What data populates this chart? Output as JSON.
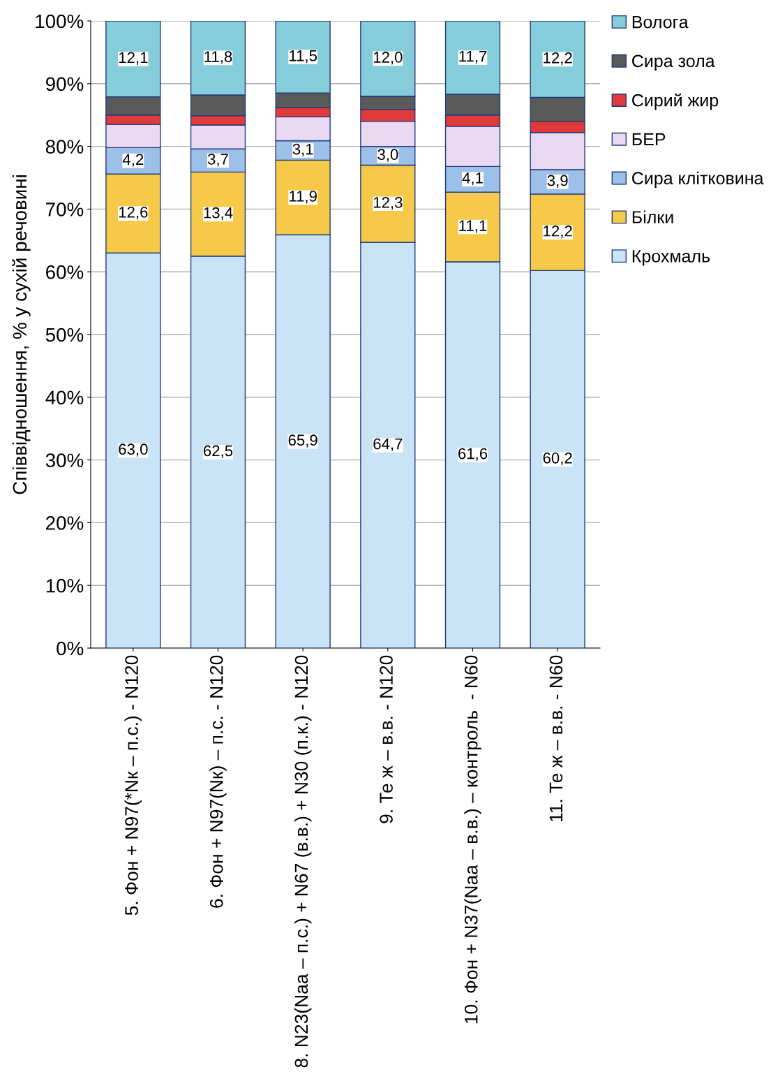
{
  "chart_data": {
    "type": "bar",
    "stacked": true,
    "ylabel": "Співвідношення, % у сухій речовині",
    "categories": [
      "5. Фон + N97(*Nк – п.с.) - N120",
      "6. Фон + N97(Nк) – п.с. - N120",
      "8. N23(Naa – п.с.) + N67 (в.в.) + N30 (п.к.) - N120",
      "9. Те ж – в.в. - N120",
      "10. Фон + N37(Naa – в.в.) – контроль  - N60",
      "11. Те ж – в.в. - N60"
    ],
    "series": [
      {
        "name": "Крохмаль",
        "color": "#c9e4f6",
        "values": [
          63.0,
          62.5,
          65.9,
          64.7,
          61.6,
          60.2
        ],
        "value_labels": [
          "63,0",
          "62,5",
          "65,9",
          "64,7",
          "61,6",
          "60,2"
        ]
      },
      {
        "name": "Білки",
        "color": "#f7c948",
        "values": [
          12.6,
          13.4,
          11.9,
          12.3,
          11.1,
          12.2
        ],
        "value_labels": [
          "12,6",
          "13,4",
          "11,9",
          "12,3",
          "11,1",
          "12,2"
        ]
      },
      {
        "name": "Сира клітковина",
        "color": "#9cc0e8",
        "values": [
          4.2,
          3.7,
          3.1,
          3.0,
          4.1,
          3.9
        ],
        "value_labels": [
          "4,2",
          "3,7",
          "3,1",
          "3,0",
          "4,1",
          "3,9"
        ]
      },
      {
        "name": "БЕР",
        "color": "#ead9f3",
        "values": [
          3.7,
          3.8,
          3.8,
          4.0,
          6.4,
          5.9
        ]
      },
      {
        "name": "Сирий жир",
        "color": "#e03a3a",
        "values": [
          1.5,
          1.5,
          1.5,
          1.9,
          1.8,
          1.8
        ]
      },
      {
        "name": "Сира зола",
        "color": "#5a5a5a",
        "values": [
          2.9,
          3.3,
          2.3,
          2.1,
          3.3,
          3.8
        ]
      },
      {
        "name": "Вологa",
        "color": "#86cddc",
        "values": [
          12.1,
          11.8,
          11.5,
          12.0,
          11.7,
          12.2
        ],
        "value_labels": [
          "12,1",
          "11,8",
          "11,5",
          "12,0",
          "11,7",
          "12,2"
        ]
      }
    ],
    "ylim": [
      0,
      100
    ],
    "yticks": [
      {
        "value": 0,
        "label": "0%"
      },
      {
        "value": 10,
        "label": "10%"
      },
      {
        "value": 20,
        "label": "20%"
      },
      {
        "value": 30,
        "label": "30%"
      },
      {
        "value": 40,
        "label": "40%"
      },
      {
        "value": 50,
        "label": "50%"
      },
      {
        "value": 60,
        "label": "60%"
      },
      {
        "value": 70,
        "label": "70%"
      },
      {
        "value": 80,
        "label": "80%"
      },
      {
        "value": 90,
        "label": "90%"
      },
      {
        "value": 100,
        "label": "100%"
      }
    ],
    "grid": "y",
    "legend": "right"
  }
}
